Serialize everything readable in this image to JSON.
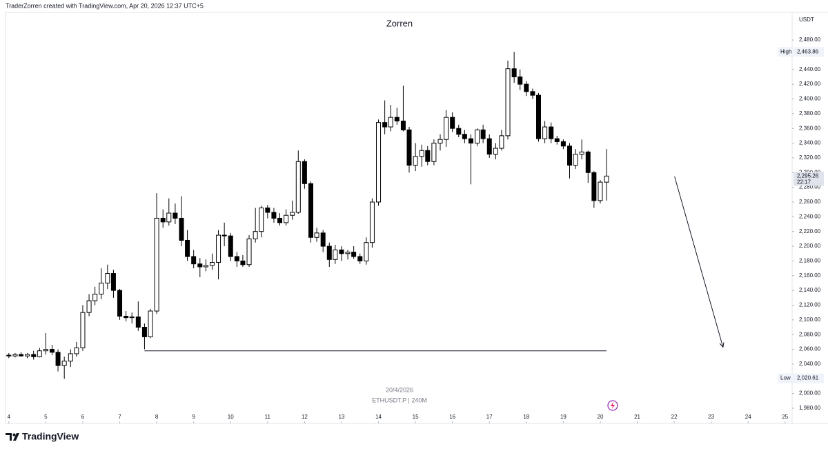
{
  "header": "TraderZorren created with TradingView.com, Apr 20, 2026 12:37 UTC+5",
  "brand": "TradingView",
  "chart_data": {
    "type": "candlestick",
    "title": "Zorren",
    "currency": "USDT",
    "date_label": "20/4/2026",
    "symbol_label": "ETHUSDT.P | 240M",
    "up_color": "#ffffff",
    "down_color": "#000000",
    "edge_color": "#000000",
    "x": [
      4,
      4.17,
      4.33,
      4.5,
      4.67,
      4.83,
      5,
      5.17,
      5.33,
      5.5,
      5.67,
      5.83,
      6,
      6.17,
      6.33,
      6.5,
      6.67,
      6.83,
      7,
      7.17,
      7.33,
      7.5,
      7.67,
      7.83,
      8,
      8.17,
      8.33,
      8.5,
      8.67,
      8.83,
      9,
      9.17,
      9.33,
      9.5,
      9.67,
      9.83,
      10,
      10.17,
      10.33,
      10.5,
      10.67,
      10.83,
      11,
      11.17,
      11.33,
      11.5,
      11.67,
      11.83,
      12,
      12.17,
      12.33,
      12.5,
      12.67,
      12.83,
      13,
      13.17,
      13.33,
      13.5,
      13.67,
      13.83,
      14,
      14.17,
      14.33,
      14.5,
      14.67,
      14.83,
      15,
      15.17,
      15.33,
      15.5,
      15.67,
      15.83,
      16,
      16.17,
      16.33,
      16.5,
      16.67,
      16.83,
      17,
      17.17,
      17.33,
      17.5,
      17.67,
      17.83,
      18,
      18.17,
      18.33,
      18.5,
      18.67,
      18.83,
      19,
      19.17,
      19.33,
      19.5,
      19.67,
      19.83,
      20,
      20.17
    ],
    "open": [
      2052,
      2051,
      2053,
      2051,
      2053,
      2050,
      2058,
      2060,
      2056,
      2038,
      2044,
      2054,
      2062,
      2110,
      2126,
      2135,
      2150,
      2163,
      2140,
      2105,
      2103,
      2104,
      2090,
      2077,
      2112,
      2238,
      2233,
      2245,
      2238,
      2208,
      2186,
      2176,
      2172,
      2174,
      2178,
      2215,
      2214,
      2186,
      2180,
      2175,
      2210,
      2220,
      2252,
      2246,
      2238,
      2232,
      2242,
      2246,
      2315,
      2285,
      2212,
      2218,
      2200,
      2182,
      2195,
      2190,
      2192,
      2186,
      2180,
      2205,
      2260,
      2368,
      2362,
      2375,
      2370,
      2358,
      2310,
      2322,
      2330,
      2315,
      2340,
      2345,
      2375,
      2360,
      2352,
      2346,
      2340,
      2358,
      2346,
      2325,
      2333,
      2350,
      2441,
      2430,
      2420,
      2410,
      2405,
      2346,
      2362,
      2346,
      2342,
      2336,
      2310,
      2325,
      2328,
      2300,
      2262,
      2287
    ],
    "high": [
      2055,
      2055,
      2056,
      2055,
      2058,
      2062,
      2082,
      2066,
      2060,
      2050,
      2060,
      2070,
      2120,
      2135,
      2145,
      2170,
      2175,
      2168,
      2142,
      2112,
      2110,
      2125,
      2095,
      2115,
      2272,
      2250,
      2265,
      2258,
      2268,
      2222,
      2195,
      2184,
      2182,
      2190,
      2222,
      2232,
      2218,
      2192,
      2188,
      2215,
      2252,
      2255,
      2256,
      2252,
      2245,
      2250,
      2262,
      2330,
      2318,
      2288,
      2225,
      2222,
      2205,
      2202,
      2200,
      2195,
      2200,
      2190,
      2212,
      2265,
      2372,
      2398,
      2392,
      2388,
      2418,
      2362,
      2340,
      2338,
      2336,
      2345,
      2352,
      2385,
      2382,
      2365,
      2358,
      2352,
      2360,
      2365,
      2352,
      2340,
      2358,
      2452,
      2464,
      2440,
      2424,
      2414,
      2408,
      2370,
      2368,
      2350,
      2345,
      2340,
      2332,
      2345,
      2330,
      2302,
      2290,
      2332
    ],
    "low": [
      2048,
      2049,
      2050,
      2048,
      2046,
      2049,
      2053,
      2052,
      2030,
      2020,
      2036,
      2050,
      2058,
      2105,
      2120,
      2128,
      2142,
      2130,
      2100,
      2098,
      2095,
      2085,
      2060,
      2075,
      2108,
      2225,
      2228,
      2230,
      2200,
      2180,
      2170,
      2158,
      2166,
      2168,
      2155,
      2200,
      2180,
      2172,
      2172,
      2172,
      2205,
      2212,
      2238,
      2232,
      2228,
      2228,
      2236,
      2244,
      2278,
      2205,
      2206,
      2192,
      2172,
      2176,
      2180,
      2182,
      2183,
      2176,
      2175,
      2198,
      2255,
      2352,
      2356,
      2365,
      2356,
      2300,
      2302,
      2308,
      2310,
      2310,
      2330,
      2335,
      2355,
      2348,
      2340,
      2284,
      2336,
      2340,
      2320,
      2318,
      2330,
      2345,
      2422,
      2412,
      2404,
      2400,
      2342,
      2340,
      2340,
      2338,
      2332,
      2292,
      2305,
      2318,
      2286,
      2252,
      2258,
      2262
    ],
    "close": [
      2051,
      2053,
      2051,
      2053,
      2050,
      2058,
      2060,
      2056,
      2038,
      2044,
      2054,
      2062,
      2110,
      2126,
      2135,
      2150,
      2163,
      2140,
      2105,
      2103,
      2104,
      2090,
      2077,
      2112,
      2238,
      2233,
      2245,
      2238,
      2208,
      2186,
      2176,
      2172,
      2174,
      2178,
      2215,
      2214,
      2186,
      2180,
      2175,
      2210,
      2220,
      2252,
      2246,
      2238,
      2232,
      2242,
      2246,
      2315,
      2285,
      2212,
      2218,
      2200,
      2182,
      2195,
      2190,
      2192,
      2186,
      2180,
      2205,
      2260,
      2368,
      2362,
      2375,
      2370,
      2358,
      2310,
      2322,
      2330,
      2315,
      2340,
      2345,
      2375,
      2360,
      2352,
      2346,
      2340,
      2358,
      2346,
      2325,
      2333,
      2350,
      2441,
      2430,
      2420,
      2410,
      2405,
      2346,
      2362,
      2346,
      2342,
      2336,
      2310,
      2325,
      2328,
      2300,
      2262,
      2287,
      2295.26
    ],
    "xlim": [
      3.91,
      25.19
    ],
    "xticks": [
      4,
      5,
      6,
      7,
      8,
      9,
      10,
      11,
      12,
      13,
      14,
      15,
      16,
      17,
      18,
      19,
      20,
      21,
      22,
      23,
      24,
      25
    ],
    "ylim": [
      1972.5,
      2517.5
    ],
    "yticks": [
      {
        "value": 1980,
        "label": "1,980.00"
      },
      {
        "value": 2000,
        "label": "2,000.00"
      },
      {
        "value": 2020,
        "label": "2,020.00"
      },
      {
        "value": 2040,
        "label": "2,040.00"
      },
      {
        "value": 2060,
        "label": "2,060.00"
      },
      {
        "value": 2080,
        "label": "2,080.00"
      },
      {
        "value": 2100,
        "label": "2,100.00"
      },
      {
        "value": 2120,
        "label": "2,120.00"
      },
      {
        "value": 2140,
        "label": "2,140.00"
      },
      {
        "value": 2160,
        "label": "2,160.00"
      },
      {
        "value": 2180,
        "label": "2,180.00"
      },
      {
        "value": 2200,
        "label": "2,200.00"
      },
      {
        "value": 2220,
        "label": "2,220.00"
      },
      {
        "value": 2240,
        "label": "2,240.00"
      },
      {
        "value": 2260,
        "label": "2,260.00"
      },
      {
        "value": 2280,
        "label": "2,280.00"
      },
      {
        "value": 2300,
        "label": "2,300.00"
      },
      {
        "value": 2320,
        "label": "2,320.00"
      },
      {
        "value": 2340,
        "label": "2,340.00"
      },
      {
        "value": 2360,
        "label": "2,360.00"
      },
      {
        "value": 2380,
        "label": "2,380.00"
      },
      {
        "value": 2400,
        "label": "2,400.00"
      },
      {
        "value": 2420,
        "label": "2,420.00"
      },
      {
        "value": 2440,
        "label": "2,440.00"
      },
      {
        "value": 2460,
        "label": "2,460.00"
      },
      {
        "value": 2480,
        "label": "2,480.00"
      }
    ],
    "high_marker": {
      "label": "High",
      "value": 2463.86,
      "value_label": "2,463.86"
    },
    "low_marker": {
      "label": "Low",
      "value": 2020.61,
      "value_label": "2,020.61"
    },
    "last_price": {
      "value": 2295.26,
      "value_label": "2,295.26",
      "countdown": "22:17"
    },
    "annotations": {
      "horizontal_line": {
        "value": 2058,
        "x": [
          7.67,
          20.17
        ]
      },
      "arrow": {
        "x": [
          22.01,
          23.32
        ],
        "y": [
          2294.6,
          2063
        ]
      }
    }
  }
}
